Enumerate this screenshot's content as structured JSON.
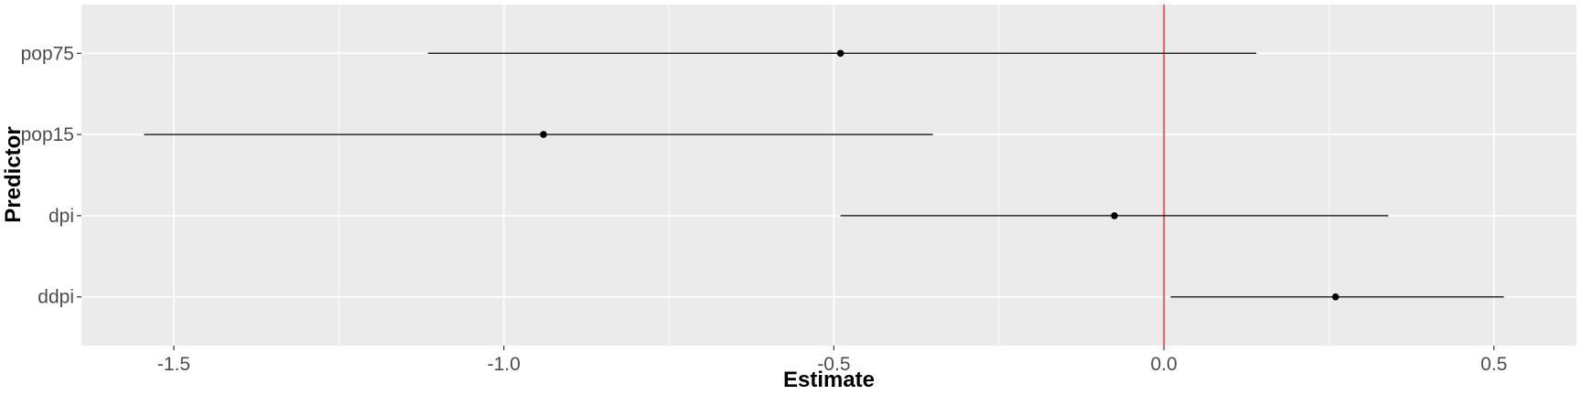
{
  "chart_data": {
    "type": "forest",
    "xlabel": "Estimate",
    "ylabel": "Predictor",
    "xlim": [
      -1.64,
      0.625
    ],
    "x_ticks": [
      -1.5,
      -1.0,
      -0.5,
      0.0,
      0.5
    ],
    "x_tick_labels": [
      "-1.5",
      "-1.0",
      "-0.5",
      "0.0",
      "0.5"
    ],
    "reference_line": {
      "x": 0.0,
      "color": "#e41a1c"
    },
    "predictors": [
      "pop75",
      "pop15",
      "dpi",
      "ddpi"
    ],
    "estimates": [
      -0.49,
      -0.94,
      -0.075,
      0.26
    ],
    "ci_lower": [
      -1.115,
      -1.545,
      -0.49,
      0.01
    ],
    "ci_upper": [
      0.14,
      -0.35,
      0.34,
      0.515
    ],
    "grid": true,
    "panel_color": "#ebebeb",
    "grid_color": "#ffffff"
  }
}
